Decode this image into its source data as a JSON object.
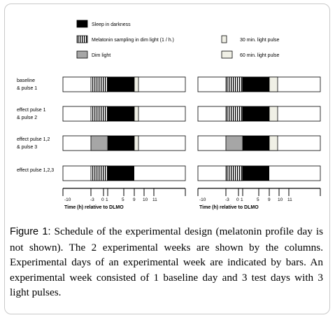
{
  "legend": {
    "sleep": "Sleep in darkness",
    "melatonin": "Melatonin sampling in dim light (1 / h.)",
    "dim": "Dim light",
    "pulse30": "30 min. light pulse",
    "pulse60": "60 min. light pulse"
  },
  "rows": [
    {
      "label1": "baseline",
      "label2": "& pulse 1"
    },
    {
      "label1": "effect pulse 1",
      "label2": "& pulse 2"
    },
    {
      "label1": "effect pulse 1,2",
      "label2": "& pulse 3"
    },
    {
      "label1": "effect pulse 1,2,3",
      "label2": ""
    }
  ],
  "axis": {
    "ticks": [
      "-10",
      "-3",
      "0",
      "1",
      "5",
      "9",
      "10",
      "11"
    ],
    "label": "Time (h) relative to DLMO"
  },
  "caption": {
    "head": "Figure 1:",
    "text": " Schedule of the experimental design (melatonin profile day is not shown). The 2 experimental weeks are shown by the columns. Experimental days of an experimental week are indicated by bars. An experimental week consisted of 1 baseline day and 3 test days with 3 light pulses."
  },
  "colors": {
    "sleep": "#000000",
    "dim": "#a6a6a6",
    "pulse": "#f0f0e6",
    "melatonin_stripe": "#000000",
    "frame": "#c9c9c9"
  }
}
